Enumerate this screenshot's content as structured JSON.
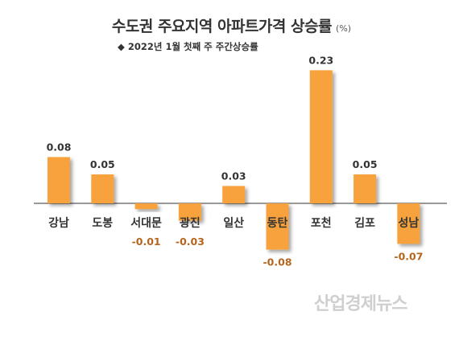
{
  "chart_data": {
    "type": "bar",
    "title": "수도권 주요지역 아파트가격 상승률",
    "unit": "(%)",
    "subtitle": "◆ 2022년 1월 첫째 주 주간상승률",
    "categories": [
      "강남",
      "도봉",
      "서대문",
      "광진",
      "일산",
      "동탄",
      "포천",
      "김포",
      "성남"
    ],
    "values": [
      0.08,
      0.05,
      -0.01,
      -0.03,
      0.03,
      -0.08,
      0.23,
      0.05,
      -0.07
    ],
    "value_labels": [
      "0.08",
      "0.05",
      "-0.01",
      "-0.03",
      "0.03",
      "-0.08",
      "0.23",
      "0.05",
      "-0.07"
    ],
    "colors": {
      "bar": "#F7A23C",
      "positive_label": "#333333",
      "negative_label": "#B5651D"
    },
    "legend": "none",
    "grid": false
  },
  "watermark": "산업경제뉴스"
}
